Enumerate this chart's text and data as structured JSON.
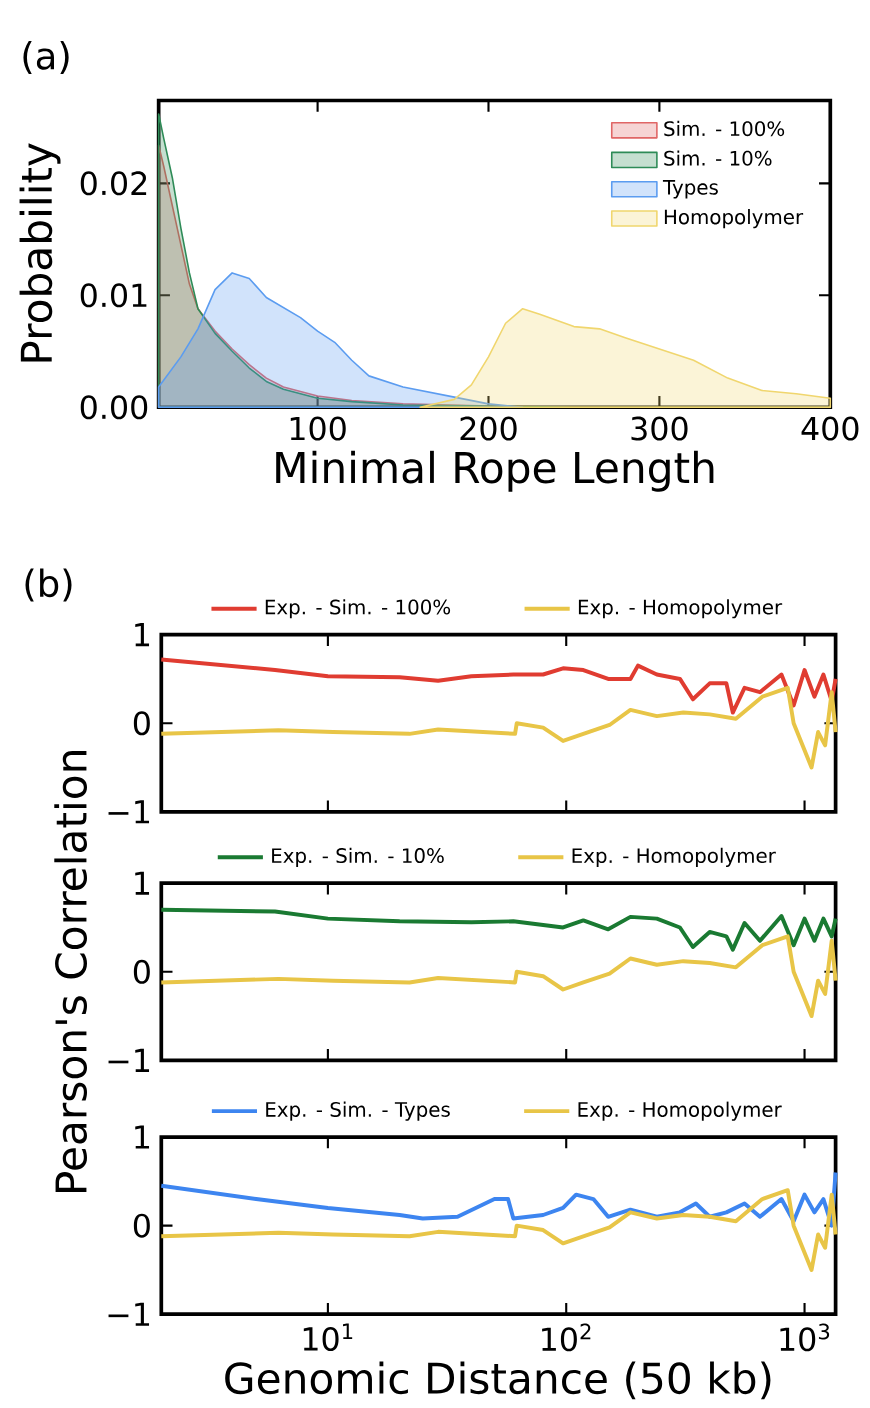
{
  "chart_data": [
    {
      "type": "area",
      "xlabel": "Minimal Rope Length",
      "ylabel": "Probability",
      "annotations": [
        "(a)"
      ],
      "legend": "top right",
      "xlim": [
        7,
        400
      ],
      "ylim": [
        0,
        0.0274
      ],
      "xticks": [
        100,
        200,
        300,
        400
      ],
      "yticks": [
        {
          "value": 0,
          "label": "0.00"
        },
        {
          "value": 0.01,
          "label": "0.01"
        },
        {
          "value": 0.02,
          "label": "0.02"
        }
      ],
      "series": [
        {
          "name": "Sim. - 100%",
          "color": "#e06666",
          "x": [
            7,
            10,
            15,
            20,
            25,
            30,
            40,
            50,
            60,
            70,
            80,
            100,
            120,
            150,
            200,
            250,
            400
          ],
          "values": [
            0.0234,
            0.0215,
            0.018,
            0.0145,
            0.011,
            0.0088,
            0.0068,
            0.0052,
            0.0038,
            0.0026,
            0.0018,
            0.001,
            0.0006,
            0.0003,
            0.0001,
            0,
            0
          ]
        },
        {
          "name": "Sim. - 10%",
          "color": "#2e8b57",
          "x": [
            7,
            10,
            15,
            20,
            25,
            30,
            40,
            50,
            60,
            70,
            80,
            100,
            120,
            150,
            200,
            250,
            400
          ],
          "values": [
            0.0262,
            0.024,
            0.0205,
            0.016,
            0.012,
            0.0088,
            0.0066,
            0.005,
            0.0035,
            0.0023,
            0.0016,
            0.0008,
            0.0005,
            0.0002,
            0.0001,
            0,
            0
          ]
        },
        {
          "name": "Types",
          "color": "#5b9cf0",
          "x": [
            7,
            20,
            30,
            40,
            50,
            60,
            70,
            90,
            100,
            110,
            120,
            130,
            150,
            180,
            200,
            220
          ],
          "values": [
            0.0018,
            0.0045,
            0.007,
            0.0105,
            0.012,
            0.0115,
            0.0098,
            0.008,
            0.0068,
            0.0058,
            0.0042,
            0.0028,
            0.0018,
            0.0009,
            0.0003,
            0
          ]
        },
        {
          "name": "Homopolymer",
          "color": "#f0d66e",
          "x": [
            160,
            180,
            190,
            200,
            210,
            220,
            230,
            250,
            265,
            280,
            300,
            320,
            340,
            360,
            380,
            400
          ],
          "values": [
            0,
            0.0007,
            0.002,
            0.0045,
            0.0075,
            0.0088,
            0.0083,
            0.0072,
            0.007,
            0.0062,
            0.0052,
            0.0042,
            0.0026,
            0.0015,
            0.0012,
            0.0008
          ]
        }
      ]
    },
    {
      "type": "line",
      "annotations": [
        "(b)"
      ],
      "legend": "top",
      "log": "x",
      "tick_labels": "y",
      "line_style": "solid",
      "xlim": [
        2,
        1350
      ],
      "ylim": [
        -1,
        1
      ],
      "xticks": [
        {
          "value": 10,
          "label": null
        },
        {
          "value": 100,
          "label": null
        },
        {
          "value": 1000,
          "label": null
        }
      ],
      "yticks": [
        {
          "value": -1,
          "label": "−1"
        },
        0,
        1
      ],
      "series": [
        {
          "name": "Exp. - Sim. - 100%",
          "color": "#e03c31",
          "x": [
            2,
            6,
            10,
            20,
            29,
            40,
            60,
            80,
            97,
            118,
            150,
            186,
            200,
            240,
            300,
            340,
            400,
            470,
            500,
            560,
            650,
            800,
            900,
            1000,
            1100,
            1200,
            1300,
            1350
          ],
          "values": [
            0.72,
            0.6,
            0.53,
            0.52,
            0.48,
            0.53,
            0.55,
            0.55,
            0.62,
            0.6,
            0.5,
            0.5,
            0.65,
            0.55,
            0.5,
            0.27,
            0.45,
            0.45,
            0.12,
            0.4,
            0.35,
            0.55,
            0.2,
            0.6,
            0.3,
            0.55,
            0.25,
            0.5
          ]
        },
        {
          "name": "Exp. - Homopolymer",
          "color": "#e8c547",
          "x": [
            2,
            6.2,
            10.5,
            22,
            29,
            61,
            62,
            80,
            97,
            118,
            152,
            186,
            240,
            310,
            400,
            515,
            665,
            850,
            900,
            1070,
            1140,
            1220,
            1300,
            1350
          ],
          "values": [
            -0.12,
            -0.08,
            -0.1,
            -0.12,
            -0.07,
            -0.12,
            0.0,
            -0.05,
            -0.2,
            -0.12,
            -0.02,
            0.15,
            0.08,
            0.12,
            0.1,
            0.05,
            0.3,
            0.4,
            0.0,
            -0.5,
            -0.1,
            -0.25,
            0.35,
            -0.1
          ]
        }
      ]
    },
    {
      "type": "line",
      "ylabel": "Pearson's Correlation",
      "legend": "top",
      "log": "x",
      "tick_labels": "y",
      "line_style": "solid",
      "xlim": [
        2,
        1350
      ],
      "ylim": [
        -1,
        1
      ],
      "xticks": [
        {
          "value": 10,
          "label": null
        },
        {
          "value": 100,
          "label": null
        },
        {
          "value": 1000,
          "label": null
        }
      ],
      "yticks": [
        {
          "value": -1,
          "label": "−1"
        },
        0,
        1
      ],
      "series": [
        {
          "name": "Exp. - Sim. - 10%",
          "color": "#1a7a32",
          "x": [
            2,
            6,
            10,
            20,
            40,
            60,
            97,
            118,
            150,
            186,
            240,
            300,
            340,
            400,
            470,
            500,
            560,
            650,
            800,
            900,
            1000,
            1100,
            1200,
            1300,
            1350
          ],
          "values": [
            0.7,
            0.68,
            0.6,
            0.57,
            0.56,
            0.57,
            0.5,
            0.58,
            0.48,
            0.62,
            0.6,
            0.5,
            0.28,
            0.45,
            0.4,
            0.25,
            0.55,
            0.35,
            0.63,
            0.3,
            0.6,
            0.35,
            0.6,
            0.4,
            0.6
          ]
        },
        {
          "name": "Exp. - Homopolymer",
          "color": "#e8c547",
          "x": [
            2,
            6.2,
            10.5,
            22,
            29,
            61,
            62,
            80,
            97,
            118,
            152,
            186,
            240,
            310,
            400,
            515,
            665,
            850,
            900,
            1070,
            1140,
            1220,
            1300,
            1350
          ],
          "values": [
            -0.12,
            -0.08,
            -0.1,
            -0.12,
            -0.07,
            -0.12,
            0.0,
            -0.05,
            -0.2,
            -0.12,
            -0.02,
            0.15,
            0.08,
            0.12,
            0.1,
            0.05,
            0.3,
            0.4,
            0.0,
            -0.5,
            -0.1,
            -0.25,
            0.35,
            -0.1
          ]
        }
      ]
    },
    {
      "type": "line",
      "xlabel": "Genomic Distance (50 kb)",
      "legend": "top",
      "log": "x",
      "line_style": "solid",
      "xlim": [
        2,
        1350
      ],
      "ylim": [
        -1,
        1
      ],
      "xticks": [
        {
          "value": 10,
          "label": "10$^{1}$"
        },
        {
          "value": 100,
          "label": "10$^{2}$"
        },
        {
          "value": 1000,
          "label": "10$^{3}$"
        }
      ],
      "yticks": [
        {
          "value": -1,
          "label": "−1"
        },
        0,
        1
      ],
      "series": [
        {
          "name": "Exp. - Sim. - Types",
          "color": "#3d85f0",
          "x": [
            2,
            5,
            10,
            20,
            25,
            35,
            50,
            57,
            60,
            80,
            97,
            110,
            130,
            150,
            186,
            240,
            300,
            350,
            400,
            470,
            560,
            650,
            800,
            900,
            1000,
            1100,
            1200,
            1300,
            1350
          ],
          "values": [
            0.45,
            0.3,
            0.2,
            0.12,
            0.08,
            0.1,
            0.3,
            0.3,
            0.08,
            0.12,
            0.2,
            0.35,
            0.3,
            0.1,
            0.18,
            0.1,
            0.15,
            0.25,
            0.1,
            0.15,
            0.25,
            0.1,
            0.3,
            0.05,
            0.35,
            0.15,
            0.3,
            0.0,
            0.6
          ]
        },
        {
          "name": "Exp. - Homopolymer",
          "color": "#e8c547",
          "x": [
            2,
            6.2,
            10.5,
            22,
            29,
            61,
            62,
            80,
            97,
            118,
            152,
            186,
            240,
            310,
            400,
            515,
            665,
            850,
            900,
            1070,
            1140,
            1220,
            1300,
            1350
          ],
          "values": [
            -0.12,
            -0.08,
            -0.1,
            -0.12,
            -0.07,
            -0.12,
            0.0,
            -0.05,
            -0.2,
            -0.12,
            -0.02,
            0.15,
            0.08,
            0.12,
            0.1,
            0.05,
            0.3,
            0.4,
            0.0,
            -0.5,
            -0.1,
            -0.25,
            0.35,
            -0.1
          ]
        }
      ]
    }
  ]
}
